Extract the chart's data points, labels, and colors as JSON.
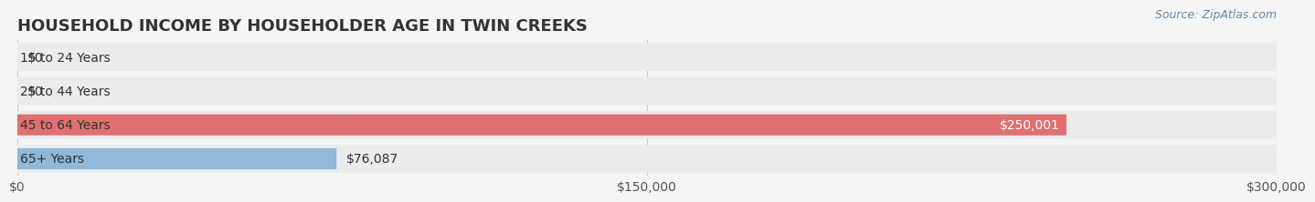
{
  "title": "HOUSEHOLD INCOME BY HOUSEHOLDER AGE IN TWIN CREEKS",
  "source": "Source: ZipAtlas.com",
  "categories": [
    "15 to 24 Years",
    "25 to 44 Years",
    "45 to 64 Years",
    "65+ Years"
  ],
  "values": [
    0,
    0,
    250001,
    76087
  ],
  "bar_colors": [
    "#f08090",
    "#f5c891",
    "#e07070",
    "#90b8d8"
  ],
  "label_colors": [
    "#555555",
    "#555555",
    "#ffffff",
    "#555555"
  ],
  "background_color": "#f5f5f5",
  "bar_bg_color": "#ebebeb",
  "xlim": [
    0,
    300000
  ],
  "xticks": [
    0,
    150000,
    300000
  ],
  "xtick_labels": [
    "$0",
    "$150,000",
    "$300,000"
  ],
  "title_fontsize": 13,
  "label_fontsize": 10,
  "axis_fontsize": 10,
  "source_fontsize": 9
}
